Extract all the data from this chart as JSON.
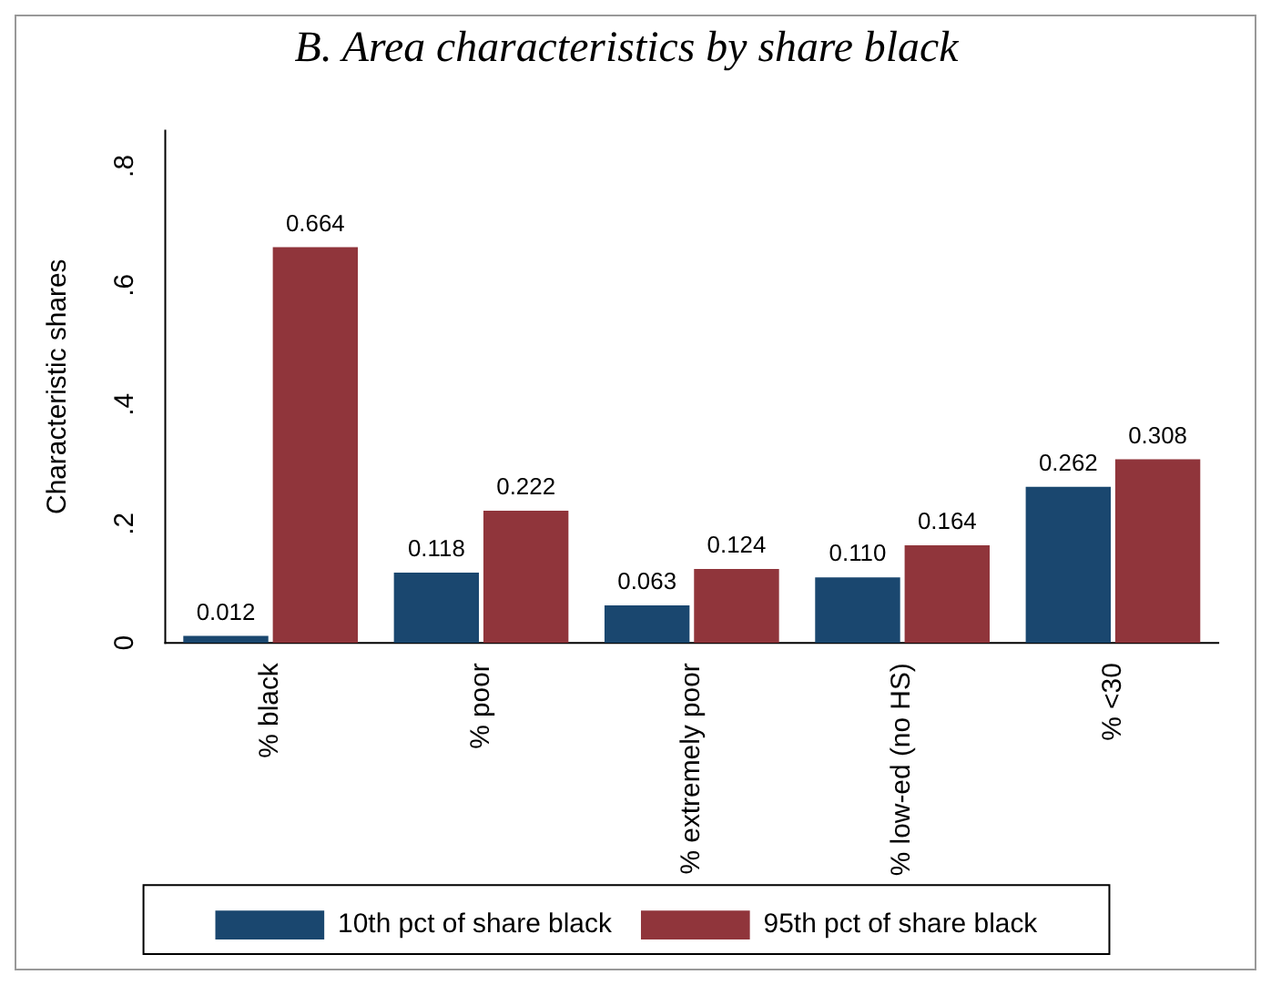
{
  "chart_data": {
    "type": "bar",
    "title": "B. Area characteristics by share black",
    "ylabel": "Characteristic shares",
    "categories": [
      "% black",
      "% poor",
      "% extremely poor",
      "% low-ed (no HS)",
      "% <30"
    ],
    "series": [
      {
        "name": "10th pct of share black",
        "color": "#1a476f",
        "values": [
          0.012,
          0.118,
          0.063,
          0.11,
          0.262
        ],
        "value_labels": [
          "0.012",
          "0.118",
          "0.063",
          "0.110",
          "0.262"
        ]
      },
      {
        "name": "95th pct of share black",
        "color": "#90353b",
        "values": [
          0.664,
          0.222,
          0.124,
          0.164,
          0.308
        ],
        "value_labels": [
          "0.664",
          "0.222",
          "0.124",
          "0.164",
          "0.308"
        ]
      }
    ],
    "ylim": [
      0,
      0.86
    ],
    "yticks": [
      0,
      {
        "value": 0.2,
        "label": ".2"
      },
      {
        "value": 0.4,
        "label": ".4"
      },
      {
        "value": 0.6,
        "label": ".6"
      },
      {
        "value": 0.8,
        "label": ".8"
      }
    ],
    "grid": false,
    "legend": "bottom"
  }
}
